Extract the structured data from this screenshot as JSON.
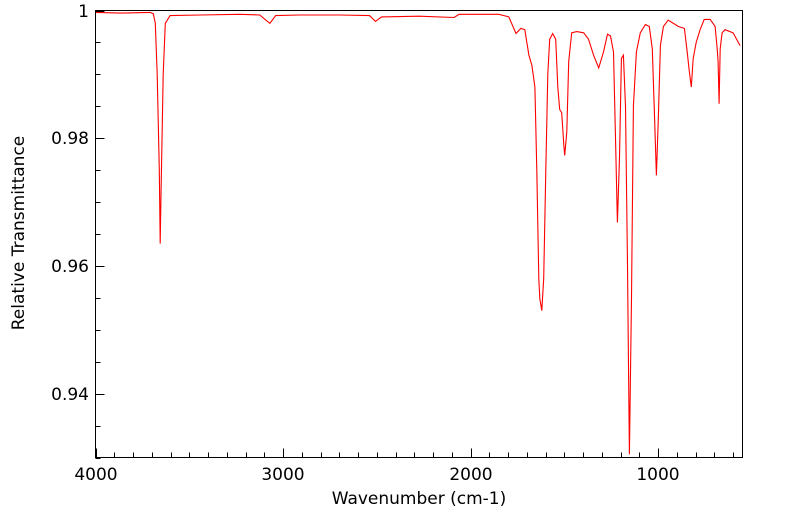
{
  "chart_data": {
    "type": "line",
    "title": "",
    "xlabel": "Wavenumber (cm-1)",
    "ylabel": "Relative Transmittance",
    "xlim": [
      4000,
      550
    ],
    "ylim": [
      0.93,
      1.0
    ],
    "x_major_ticks": [
      4000,
      3000,
      2000,
      1000
    ],
    "x_tick_labels": [
      "4000",
      "3000",
      "2000",
      "1000"
    ],
    "x_minor_step": 100,
    "y_major_ticks": [
      1.0,
      0.98,
      0.96,
      0.94
    ],
    "y_tick_labels": [
      "1",
      "0.98",
      "0.96",
      "0.94"
    ],
    "y_minor_step": 0.005,
    "grid": false,
    "series": [
      {
        "name": "spectrum",
        "color": "#ff0000",
        "x": [
          4000,
          3867,
          3708,
          3692,
          3681,
          3671,
          3660,
          3655,
          3650,
          3639,
          3628,
          3602,
          3442,
          3230,
          3124,
          3092,
          3070,
          3039,
          2911,
          2699,
          2539,
          2507,
          2475,
          2274,
          2088,
          2061,
          1849,
          1796,
          1758,
          1732,
          1711,
          1689,
          1673,
          1657,
          1647,
          1636,
          1631,
          1620,
          1610,
          1599,
          1588,
          1578,
          1562,
          1546,
          1535,
          1525,
          1514,
          1503,
          1498,
          1487,
          1477,
          1461,
          1434,
          1397,
          1371,
          1344,
          1317,
          1291,
          1270,
          1254,
          1238,
          1227,
          1217,
          1206,
          1196,
          1185,
          1174,
          1163,
          1153,
          1142,
          1132,
          1116,
          1095,
          1068,
          1047,
          1031,
          1020,
          1009,
          999,
          988,
          972,
          946,
          892,
          860,
          845,
          834,
          823,
          813,
          797,
          776,
          754,
          722,
          696,
          685,
          680,
          675,
          669,
          659,
          643,
          600,
          563
        ],
        "y": [
          0.9997,
          0.9996,
          0.9997,
          0.9995,
          0.998,
          0.99,
          0.975,
          0.9635,
          0.972,
          0.99,
          0.998,
          0.9992,
          0.9993,
          0.9994,
          0.9993,
          0.9985,
          0.998,
          0.9992,
          0.9993,
          0.9993,
          0.9992,
          0.9983,
          0.999,
          0.9991,
          0.9989,
          0.9994,
          0.9994,
          0.999,
          0.9964,
          0.9972,
          0.997,
          0.993,
          0.9914,
          0.988,
          0.975,
          0.958,
          0.9549,
          0.953,
          0.958,
          0.975,
          0.99,
          0.9955,
          0.9964,
          0.9955,
          0.988,
          0.9845,
          0.984,
          0.979,
          0.9773,
          0.981,
          0.992,
          0.9965,
          0.9967,
          0.9965,
          0.9955,
          0.993,
          0.991,
          0.9935,
          0.9963,
          0.996,
          0.9935,
          0.98,
          0.9668,
          0.977,
          0.9925,
          0.993,
          0.985,
          0.96,
          0.9305,
          0.955,
          0.985,
          0.9935,
          0.9965,
          0.9978,
          0.9975,
          0.994,
          0.984,
          0.9742,
          0.983,
          0.9945,
          0.9975,
          0.9985,
          0.9975,
          0.9972,
          0.9935,
          0.9906,
          0.988,
          0.9925,
          0.995,
          0.997,
          0.9986,
          0.9986,
          0.9975,
          0.994,
          0.992,
          0.9854,
          0.994,
          0.9965,
          0.997,
          0.9965,
          0.9945
        ]
      }
    ]
  }
}
